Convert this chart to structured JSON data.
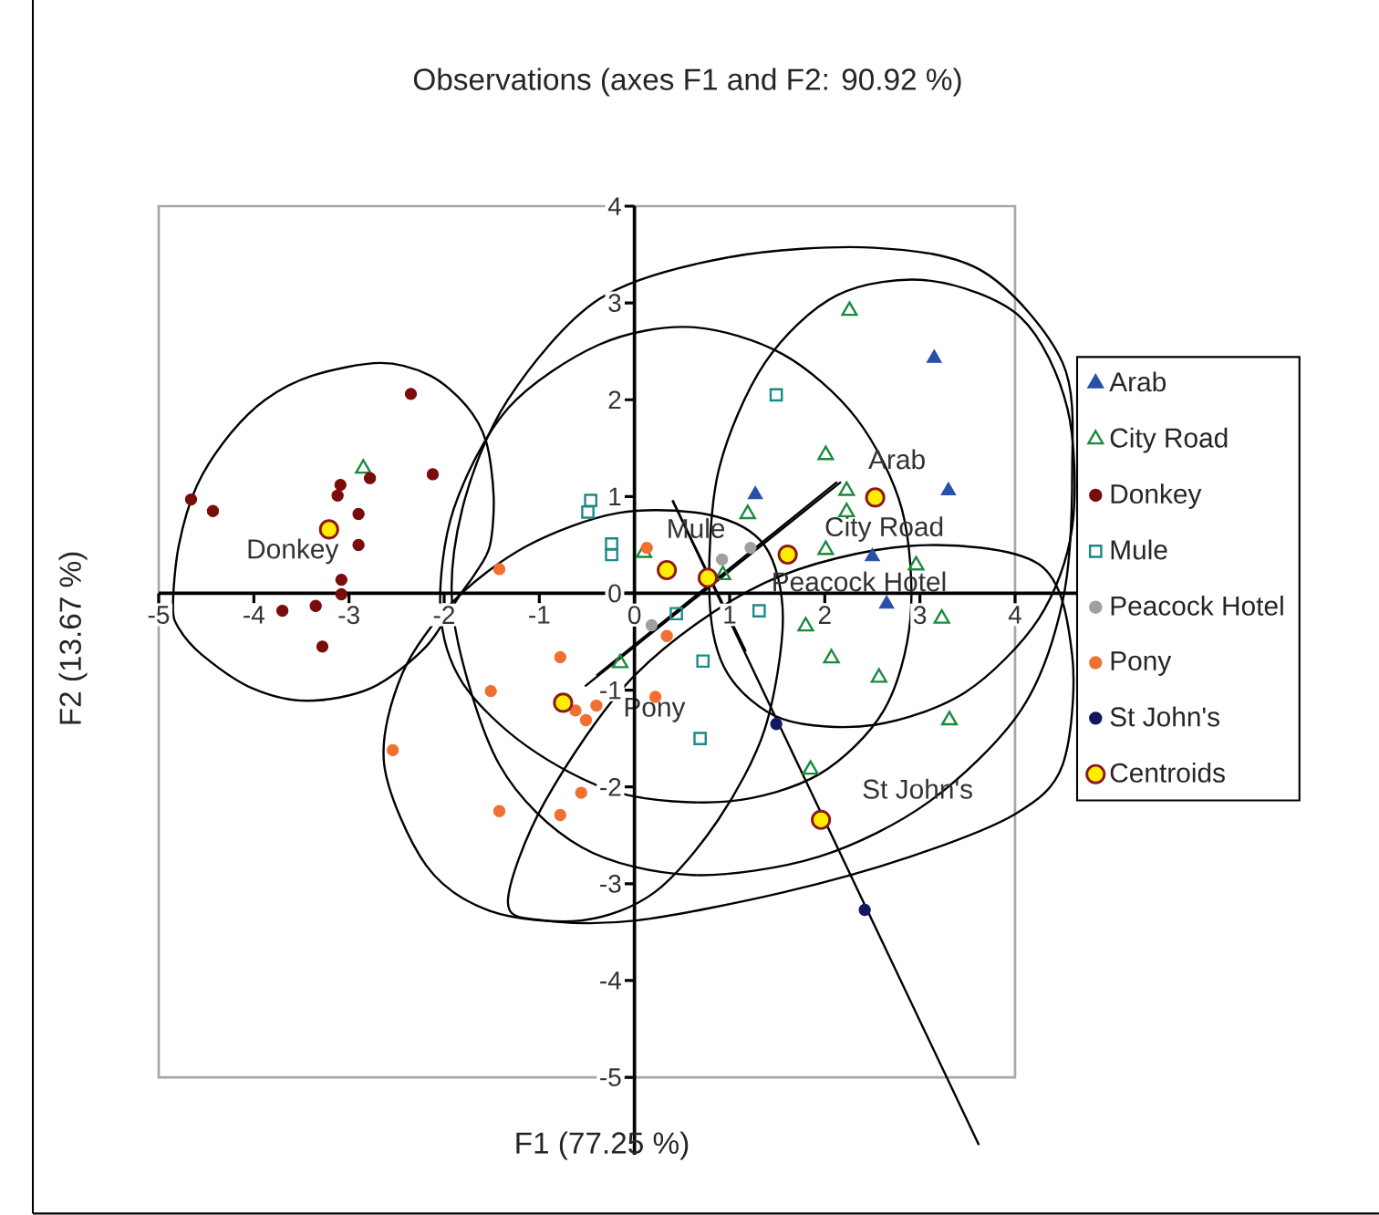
{
  "chart_data": {
    "type": "scatter",
    "title": "Observations (axes F1 and F2: 90.92 %)",
    "xlabel": "F1 (77.25 %)",
    "ylabel": "F2 (13.67 %)",
    "xlim": [
      -5,
      4.7
    ],
    "ylim": [
      -5.8,
      4
    ],
    "xticks": [
      -5,
      -4,
      -3,
      -2,
      -1,
      0,
      1,
      2,
      3,
      4
    ],
    "yticks": [
      -5,
      -4,
      -3,
      -2,
      -1,
      0,
      1,
      2,
      3,
      4
    ],
    "grid": false,
    "legend": "right",
    "series": [
      {
        "name": "Arab",
        "color": "#2850a8",
        "marker": "triangle",
        "x": [
          3.15,
          1.27,
          3.3,
          2.5,
          2.65
        ],
        "values": [
          2.43,
          1.02,
          1.06,
          0.38,
          -0.11
        ]
      },
      {
        "name": "City Road",
        "color": "#1a8a3c",
        "marker": "triangle-open",
        "x": [
          -2.85,
          0.1,
          2.26,
          2.01,
          2.23,
          2.23,
          1.19,
          2.01,
          2.96,
          0.93,
          1.8,
          2.07,
          3.23,
          2.57,
          3.31,
          1.85,
          -0.15
        ],
        "values": [
          1.29,
          0.42,
          2.92,
          1.43,
          1.06,
          0.84,
          0.82,
          0.45,
          0.29,
          0.19,
          -0.34,
          -0.67,
          -0.26,
          -0.87,
          -1.31,
          -1.82,
          -0.72
        ]
      },
      {
        "name": "Donkey",
        "color": "#7b0c0c",
        "marker": "circle",
        "x": [
          -2.35,
          -4.66,
          -4.43,
          -3.09,
          -3.12,
          -2.78,
          -2.12,
          -2.9,
          -2.9,
          -3.08,
          -3.08,
          -3.7,
          -3.35,
          -3.28
        ],
        "values": [
          2.06,
          0.97,
          0.85,
          1.12,
          1.01,
          1.19,
          1.23,
          0.82,
          0.5,
          0.14,
          -0.01,
          -0.18,
          -0.13,
          -0.55
        ]
      },
      {
        "name": "Mule",
        "color": "#1a8a8a",
        "marker": "square-open",
        "x": [
          -0.46,
          -0.49,
          -0.24,
          -0.24,
          1.49,
          0.44,
          1.31,
          0.72,
          0.69
        ],
        "values": [
          0.96,
          0.84,
          0.51,
          0.4,
          2.05,
          -0.21,
          -0.18,
          -0.7,
          -1.5
        ]
      },
      {
        "name": "Peacock Hotel",
        "color": "#a0a0a0",
        "marker": "circle",
        "x": [
          0.92,
          1.22,
          0.18
        ],
        "values": [
          0.35,
          0.47,
          -0.33
        ]
      },
      {
        "name": "Pony",
        "color": "#f07030",
        "marker": "circle",
        "x": [
          0.13,
          -1.42,
          0.34,
          -0.78,
          -1.51,
          -0.62,
          -0.4,
          -0.51,
          0.22,
          -2.54,
          -0.56,
          -1.42,
          -0.78
        ],
        "values": [
          0.47,
          0.25,
          -0.44,
          -0.66,
          -1.01,
          -1.21,
          -1.16,
          -1.31,
          -1.07,
          -1.62,
          -2.06,
          -2.25,
          -2.29
        ]
      },
      {
        "name": "St John's",
        "color": "#101860",
        "marker": "circle",
        "x": [
          1.49,
          2.42
        ],
        "values": [
          -1.35,
          -3.27
        ]
      },
      {
        "name": "Centroids",
        "color": "#ffee00",
        "marker": "circle-big",
        "x": [
          2.53,
          1.61,
          -3.21,
          0.34,
          0.77,
          -0.75,
          1.96
        ],
        "values": [
          0.99,
          0.4,
          0.66,
          0.24,
          0.16,
          -1.13,
          -2.34
        ]
      },
      {
        "type": "line",
        "color": "#000000",
        "x": [
          0.4,
          3.62
        ],
        "values": [
          0.96,
          -5.7
        ]
      },
      {
        "type": "line",
        "color": "#000000",
        "x": [
          -0.52,
          2.17
        ],
        "values": [
          -0.96,
          1.15
        ]
      },
      {
        "type": "line",
        "color": "#000000",
        "x": [
          -0.4,
          2.13
        ],
        "values": [
          -0.85,
          1.15
        ]
      },
      {
        "type": "line",
        "color": "#000000",
        "x": [
          0.4,
          1.17
        ],
        "values": [
          0.96,
          -0.6
        ]
      }
    ],
    "annotations": [
      "Arab",
      "City Road",
      "Donkey",
      "Mule",
      "Peacock Hotel",
      "Pony",
      "St John's"
    ]
  }
}
